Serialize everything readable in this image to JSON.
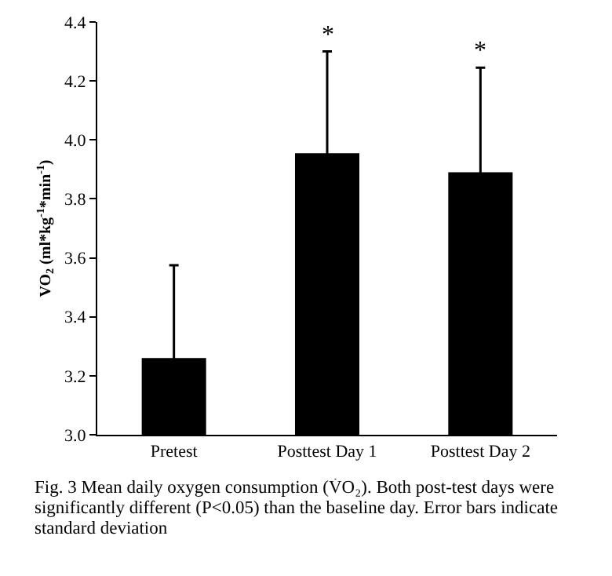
{
  "chart_data": {
    "type": "bar",
    "categories": [
      "Pretest",
      "Posttest Day 1",
      "Posttest Day 2"
    ],
    "values": [
      3.26,
      3.955,
      3.89
    ],
    "errors": [
      0.315,
      0.345,
      0.355
    ],
    "color": "#000000",
    "ylabel": "VO$_{2}$ (ml*kg$^{-1}$*min$^{-1}$)",
    "ylim": [
      3.0,
      4.4
    ],
    "yticks": [
      {
        "value": 3.0,
        "label": "3.0"
      },
      3.2,
      3.4,
      3.6,
      3.8,
      {
        "value": 4.0,
        "label": "4.0"
      },
      4.2,
      4.4
    ],
    "grid": false,
    "annotations": [
      {
        "text": "*",
        "x": "Posttest Day 1",
        "y": 4.3
      },
      {
        "text": "*",
        "x": "Posttest Day 2",
        "y": 4.245
      },
      "Fig. 3 Mean daily oxygen consumption (V̇O₂). Both post-test days were significantly different (P<0.05) than the baseline day. Error bars indicate standard deviation"
    ]
  }
}
